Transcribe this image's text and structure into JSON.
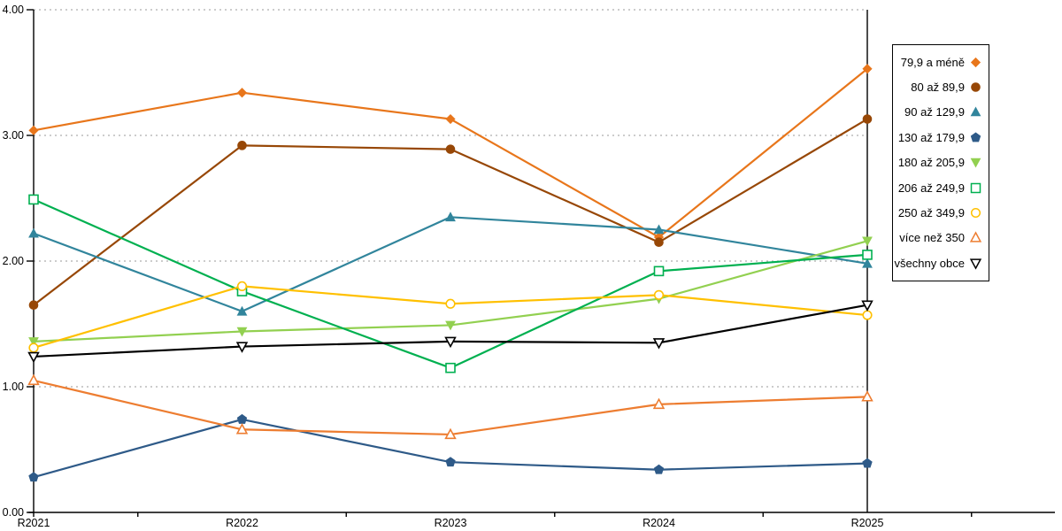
{
  "chart_data": {
    "type": "line",
    "categories": [
      "R2021",
      "R2022",
      "R2023",
      "R2024",
      "R2025"
    ],
    "series": [
      {
        "name": "79,9 a méně",
        "marker": "diamond-filled",
        "color": "#E8761B",
        "values": [
          3.04,
          3.34,
          3.13,
          2.19,
          3.53
        ]
      },
      {
        "name": "80 až 89,9",
        "marker": "circle-filled",
        "color": "#974706",
        "values": [
          1.65,
          2.92,
          2.89,
          2.15,
          3.13
        ]
      },
      {
        "name": "90 až 129,9",
        "marker": "triangle-up-filled",
        "color": "#31859C",
        "values": [
          2.22,
          1.6,
          2.35,
          2.25,
          1.98
        ]
      },
      {
        "name": "130 až 179,9",
        "marker": "pentagon-filled",
        "color": "#2E5A88",
        "values": [
          0.28,
          0.74,
          0.4,
          0.34,
          0.39
        ]
      },
      {
        "name": "180 až 205,9",
        "marker": "triangle-down-filled",
        "color": "#92D050",
        "values": [
          1.36,
          1.44,
          1.49,
          1.7,
          2.16
        ]
      },
      {
        "name": "206 až 249,9",
        "marker": "square-open",
        "color": "#00B050",
        "values": [
          2.49,
          1.76,
          1.15,
          1.92,
          2.05
        ]
      },
      {
        "name": "250 až 349,9",
        "marker": "circle-open",
        "color": "#FFC000",
        "values": [
          1.31,
          1.8,
          1.66,
          1.73,
          1.57
        ]
      },
      {
        "name": "více než 350",
        "marker": "triangle-up-open",
        "color": "#ED7D31",
        "values": [
          1.05,
          0.66,
          0.62,
          0.86,
          0.92
        ]
      },
      {
        "name": "všechny obce",
        "marker": "triangle-down-open",
        "color": "#000000",
        "values": [
          1.24,
          1.32,
          1.36,
          1.35,
          1.65
        ]
      }
    ],
    "title": "",
    "xlabel": "",
    "ylabel": "",
    "ylim": [
      0,
      4
    ],
    "ytick_labels": [
      "0.00",
      "1.00",
      "2.00",
      "3.00",
      "4.00"
    ],
    "grid": "horizontal-dotted",
    "gridline_color": "#ADADAD",
    "axis_color": "#000000",
    "legend_position": "right"
  }
}
